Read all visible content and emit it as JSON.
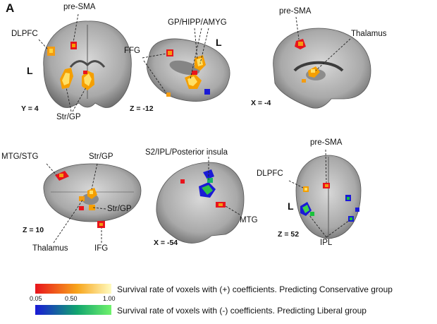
{
  "panel_letter": "A",
  "orientation_marker": "L",
  "views": [
    {
      "id": "coronal",
      "coord": "Y = 4",
      "labels": [
        "pre-SMA",
        "DLPFC",
        "Str/GP"
      ]
    },
    {
      "id": "axial-low",
      "coord": "Z = -12",
      "labels": [
        "GP/HIPP/AMYG",
        "FFG"
      ]
    },
    {
      "id": "sagittal-medial",
      "coord": "X = -4",
      "labels": [
        "pre-SMA",
        "Thalamus"
      ]
    },
    {
      "id": "axial-mid",
      "coord": "Z = 10",
      "labels": [
        "MTG/STG",
        "Str/GP",
        "Str/GP",
        "Thalamus",
        "IFG"
      ]
    },
    {
      "id": "sagittal-lateral",
      "coord": "X = -54",
      "labels": [
        "S2/IPL/Posterior insula",
        "MTG"
      ]
    },
    {
      "id": "axial-high",
      "coord": "Z = 52",
      "labels": [
        "pre-SMA",
        "DLPFC",
        "IPL"
      ]
    }
  ],
  "legend": {
    "positive_text": "Survival rate of voxels with (+) coefficients. Predicting Conservative group",
    "negative_text": "Survival rate of voxels with (-) coefficients. Predicting Liberal group",
    "ticks": [
      "0.05",
      "0.50",
      "1.00"
    ],
    "positive_colors": [
      "#e8141c",
      "#f7d117",
      "#fffbbf"
    ],
    "negative_colors": [
      "#1a1ad6",
      "#18c23b",
      "#6ff26c"
    ]
  }
}
